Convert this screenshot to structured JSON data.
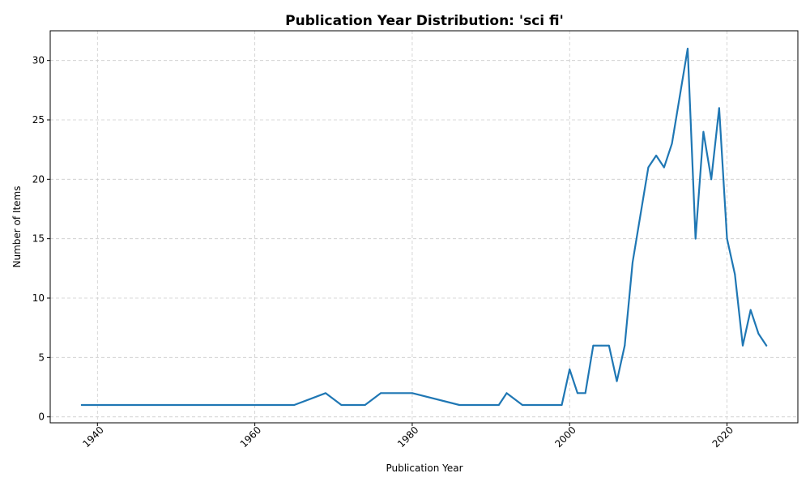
{
  "chart_data": {
    "type": "line",
    "title": "Publication Year Distribution: 'sci fi'",
    "xlabel": "Publication Year",
    "ylabel": "Number of Items",
    "xlim": [
      1934,
      2029
    ],
    "ylim": [
      -0.5,
      32.5
    ],
    "xticks": [
      1940,
      1960,
      1980,
      2000,
      2020
    ],
    "yticks": [
      0,
      5,
      10,
      15,
      20,
      25,
      30
    ],
    "grid": true,
    "series": [
      {
        "color": "#1f77b4",
        "x": [
          1938,
          1965,
          1969,
          1971,
          1974,
          1976,
          1980,
          1986,
          1991,
          1992,
          1994,
          1999,
          2000,
          2001,
          2002,
          2003,
          2004,
          2005,
          2006,
          2007,
          2008,
          2009,
          2010,
          2011,
          2012,
          2013,
          2014,
          2015,
          2016,
          2017,
          2018,
          2019,
          2020,
          2021,
          2022,
          2023,
          2024,
          2025
        ],
        "y": [
          1,
          1,
          2,
          1,
          1,
          2,
          2,
          1,
          1,
          2,
          1,
          1,
          4,
          2,
          2,
          6,
          6,
          6,
          3,
          6,
          13,
          17,
          21,
          22,
          21,
          23,
          27,
          31,
          15,
          24,
          20,
          26,
          15,
          12,
          6,
          9,
          7,
          6
        ]
      }
    ]
  }
}
